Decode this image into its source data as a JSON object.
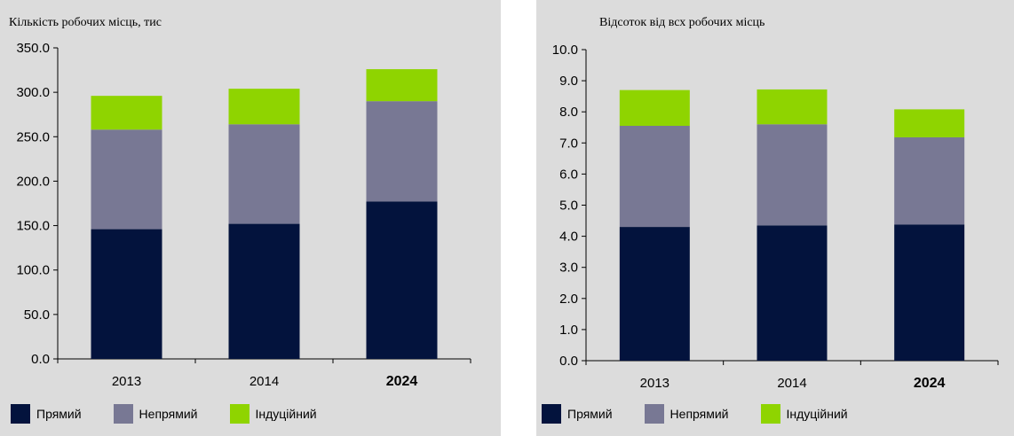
{
  "colors": {
    "direct": "#03133d",
    "indirect": "#787894",
    "induced": "#8fd400",
    "axis": "#000000"
  },
  "legend": {
    "direct": "Прямий",
    "indirect": "Непрямий",
    "induced": "Індуційний"
  },
  "chart_data": [
    {
      "type": "bar",
      "stacked": true,
      "title": "",
      "ylabel": "Кількість робочих місць, тис",
      "xlabel": "",
      "categories": [
        "2013",
        "2014",
        "2024"
      ],
      "bold_categories": [
        "2024"
      ],
      "ylim": [
        0,
        350
      ],
      "yticks": [
        "0.0",
        "50.0",
        "100.0",
        "150.0",
        "200.0",
        "250.0",
        "300.0",
        "350.0"
      ],
      "series": [
        {
          "name": "Прямий",
          "values": [
            146,
            152,
            177
          ]
        },
        {
          "name": "Непрямий",
          "values": [
            112,
            112,
            113
          ]
        },
        {
          "name": "Індуційний",
          "values": [
            38,
            40,
            36
          ]
        }
      ],
      "grid": false,
      "legend_position": "bottom"
    },
    {
      "type": "bar",
      "stacked": true,
      "title": "",
      "ylabel": "Відсоток від всх робочих місць",
      "xlabel": "",
      "categories": [
        "2013",
        "2014",
        "2024"
      ],
      "bold_categories": [
        "2024"
      ],
      "ylim": [
        0,
        10
      ],
      "yticks": [
        "0.0",
        "1.0",
        "2.0",
        "3.0",
        "4.0",
        "5.0",
        "6.0",
        "7.0",
        "8.0",
        "9.0",
        "10.0"
      ],
      "series": [
        {
          "name": "Прямий",
          "values": [
            4.3,
            4.35,
            4.38
          ]
        },
        {
          "name": "Непрямий",
          "values": [
            3.25,
            3.25,
            2.8
          ]
        },
        {
          "name": "Індуційний",
          "values": [
            1.15,
            1.12,
            0.9
          ]
        }
      ],
      "grid": false,
      "legend_position": "bottom"
    }
  ]
}
